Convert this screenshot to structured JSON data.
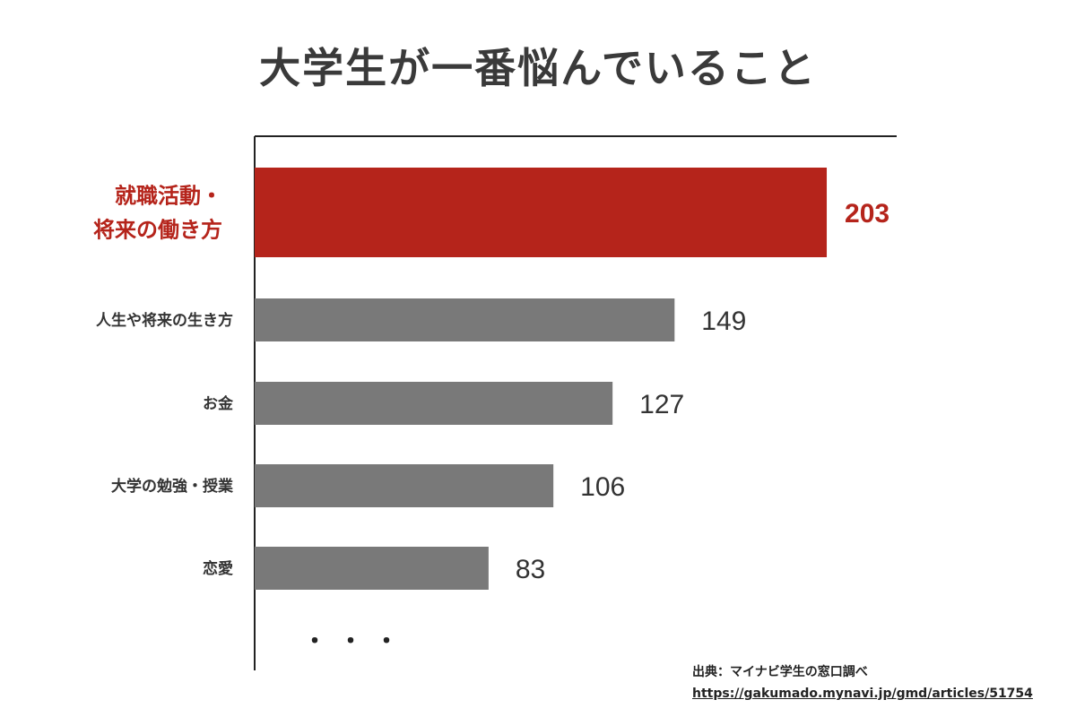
{
  "title": "大学生が一番悩んでいること",
  "chart_data": {
    "type": "bar",
    "orientation": "horizontal",
    "title": "大学生が一番悩んでいること",
    "categories": [
      [
        "就職活動・",
        "将来の働き方"
      ],
      [
        "人生や将来の生き方"
      ],
      [
        "お金"
      ],
      [
        "大学の勉強・授業"
      ],
      [
        "恋愛"
      ]
    ],
    "values": [
      203,
      149,
      127,
      106,
      83
    ],
    "value_labels": [
      "203",
      "149",
      "127",
      "106",
      "83"
    ],
    "highlight_index": 0,
    "colors": {
      "highlight": "#b5241b",
      "normal": "#797979",
      "axis": "#222222",
      "label": "#333333"
    },
    "xlim": [
      0,
      240
    ],
    "continuation": "・・・"
  },
  "source": {
    "label": "出典：マイナビ学生の窓口調べ",
    "url": "https://gakumado.mynavi.jp/gmd/articles/51754"
  }
}
